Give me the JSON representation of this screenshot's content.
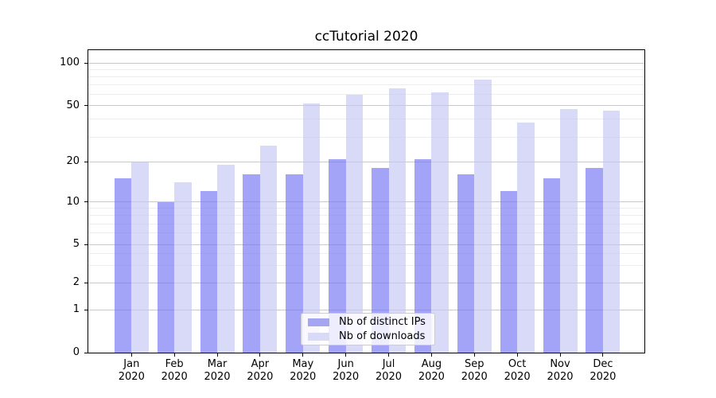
{
  "title": "ccTutorial 2020",
  "colors": {
    "ips_bar": "rgba(113,113,242,0.65)",
    "downloads_bar": "rgba(197,197,244,0.65)",
    "ips_swatch": "#a5a5f2",
    "downloads_swatch": "#d9d9f8",
    "major_grid": "#c9c9c9",
    "minor_grid": "#ededed",
    "spine": "#000000"
  },
  "legend": {
    "items": [
      {
        "label": "Nb of distinct IPs",
        "color_key": "ips_swatch"
      },
      {
        "label": "Nb of downloads",
        "color_key": "downloads_swatch"
      }
    ]
  },
  "x_axis": {
    "months": [
      "Jan",
      "Feb",
      "Mar",
      "Apr",
      "May",
      "Jun",
      "Jul",
      "Aug",
      "Sep",
      "Oct",
      "Nov",
      "Dec"
    ],
    "year": "2020"
  },
  "y_axis": {
    "tick_labels": [
      "0",
      "1",
      "2",
      "5",
      "10",
      "20",
      "50",
      "100"
    ],
    "tick_values": [
      0,
      1,
      2,
      5,
      10,
      20,
      50,
      100
    ],
    "minor_tick_values": [
      3,
      4,
      6,
      7,
      8,
      9,
      30,
      40,
      60,
      70,
      80,
      90
    ]
  },
  "chart_data": {
    "type": "bar",
    "title": "ccTutorial 2020",
    "categories": [
      "Jan 2020",
      "Feb 2020",
      "Mar 2020",
      "Apr 2020",
      "May 2020",
      "Jun 2020",
      "Jul 2020",
      "Aug 2020",
      "Sep 2020",
      "Oct 2020",
      "Nov 2020",
      "Dec 2020"
    ],
    "series": [
      {
        "name": "Nb of distinct IPs",
        "values": [
          15,
          10,
          12,
          16,
          16,
          21,
          18,
          21,
          16,
          12,
          15,
          18
        ]
      },
      {
        "name": "Nb of downloads",
        "values": [
          20,
          14,
          19,
          26,
          52,
          60,
          66,
          62,
          76,
          38,
          47,
          46
        ]
      }
    ],
    "yscale": "log-like",
    "y_ticks": [
      0,
      1,
      2,
      5,
      10,
      20,
      50,
      100
    ],
    "ylim": [
      0,
      128
    ],
    "grid": "horizontal major and minor gridlines",
    "legend_position": "lower center inside plot"
  }
}
